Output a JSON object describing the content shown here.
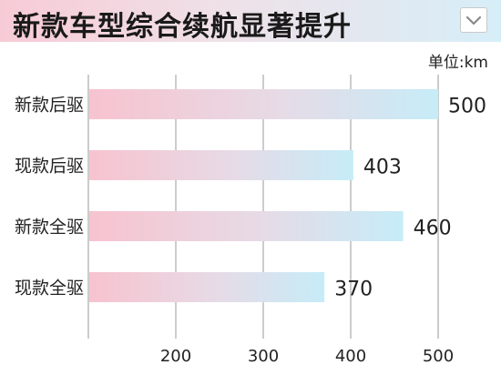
{
  "header": {
    "title": "新款车型综合续航显著提升"
  },
  "unit_label": "单位:km",
  "chart_data": {
    "type": "bar",
    "orientation": "horizontal",
    "categories": [
      "新款后驱",
      "现款后驱",
      "新款全驱",
      "现款全驱"
    ],
    "values": [
      500,
      403,
      460,
      370
    ],
    "xticks": [
      200,
      300,
      400,
      500
    ],
    "xlim": [
      100,
      520
    ],
    "grid": "vertical",
    "colors": {
      "bar_start": "#f7c3cf",
      "bar_end": "#c6ecf8",
      "grid": "#9a9a9a"
    }
  }
}
